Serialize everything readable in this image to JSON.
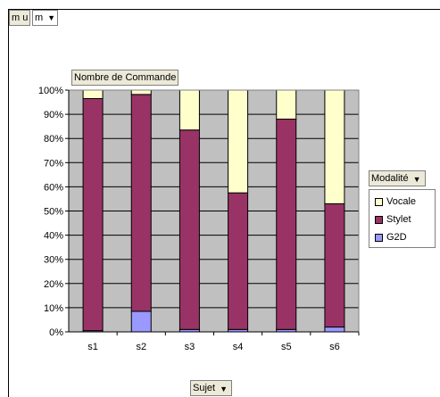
{
  "page_field": {
    "label": "m u",
    "value": "m"
  },
  "data_field": {
    "label": "Nombre de Commande"
  },
  "series_field": {
    "label": "Modalité"
  },
  "category_field": {
    "label": "Sujet"
  },
  "chart_data": {
    "type": "bar",
    "stacked": true,
    "percent_stacked": true,
    "categories": [
      "s1",
      "s2",
      "s3",
      "s4",
      "s5",
      "s6"
    ],
    "series": [
      {
        "name": "G2D",
        "color": "#9999ff",
        "values": [
          0.5,
          8.5,
          1.0,
          1.0,
          1.0,
          2.0
        ]
      },
      {
        "name": "Stylet",
        "color": "#993366",
        "values": [
          96.0,
          89.7,
          82.5,
          56.5,
          87.0,
          51.0
        ]
      },
      {
        "name": "Vocale",
        "color": "#ffffcc",
        "values": [
          3.5,
          1.8,
          16.5,
          42.5,
          12.0,
          47.0
        ]
      }
    ],
    "ylim": [
      0,
      100
    ],
    "yticks": [
      "0%",
      "10%",
      "20%",
      "30%",
      "40%",
      "50%",
      "60%",
      "70%",
      "80%",
      "90%",
      "100%"
    ],
    "plot_background": "#c0c0c0",
    "grid": true,
    "legend_position": "right",
    "legend_order": [
      "Vocale",
      "Stylet",
      "G2D"
    ]
  }
}
